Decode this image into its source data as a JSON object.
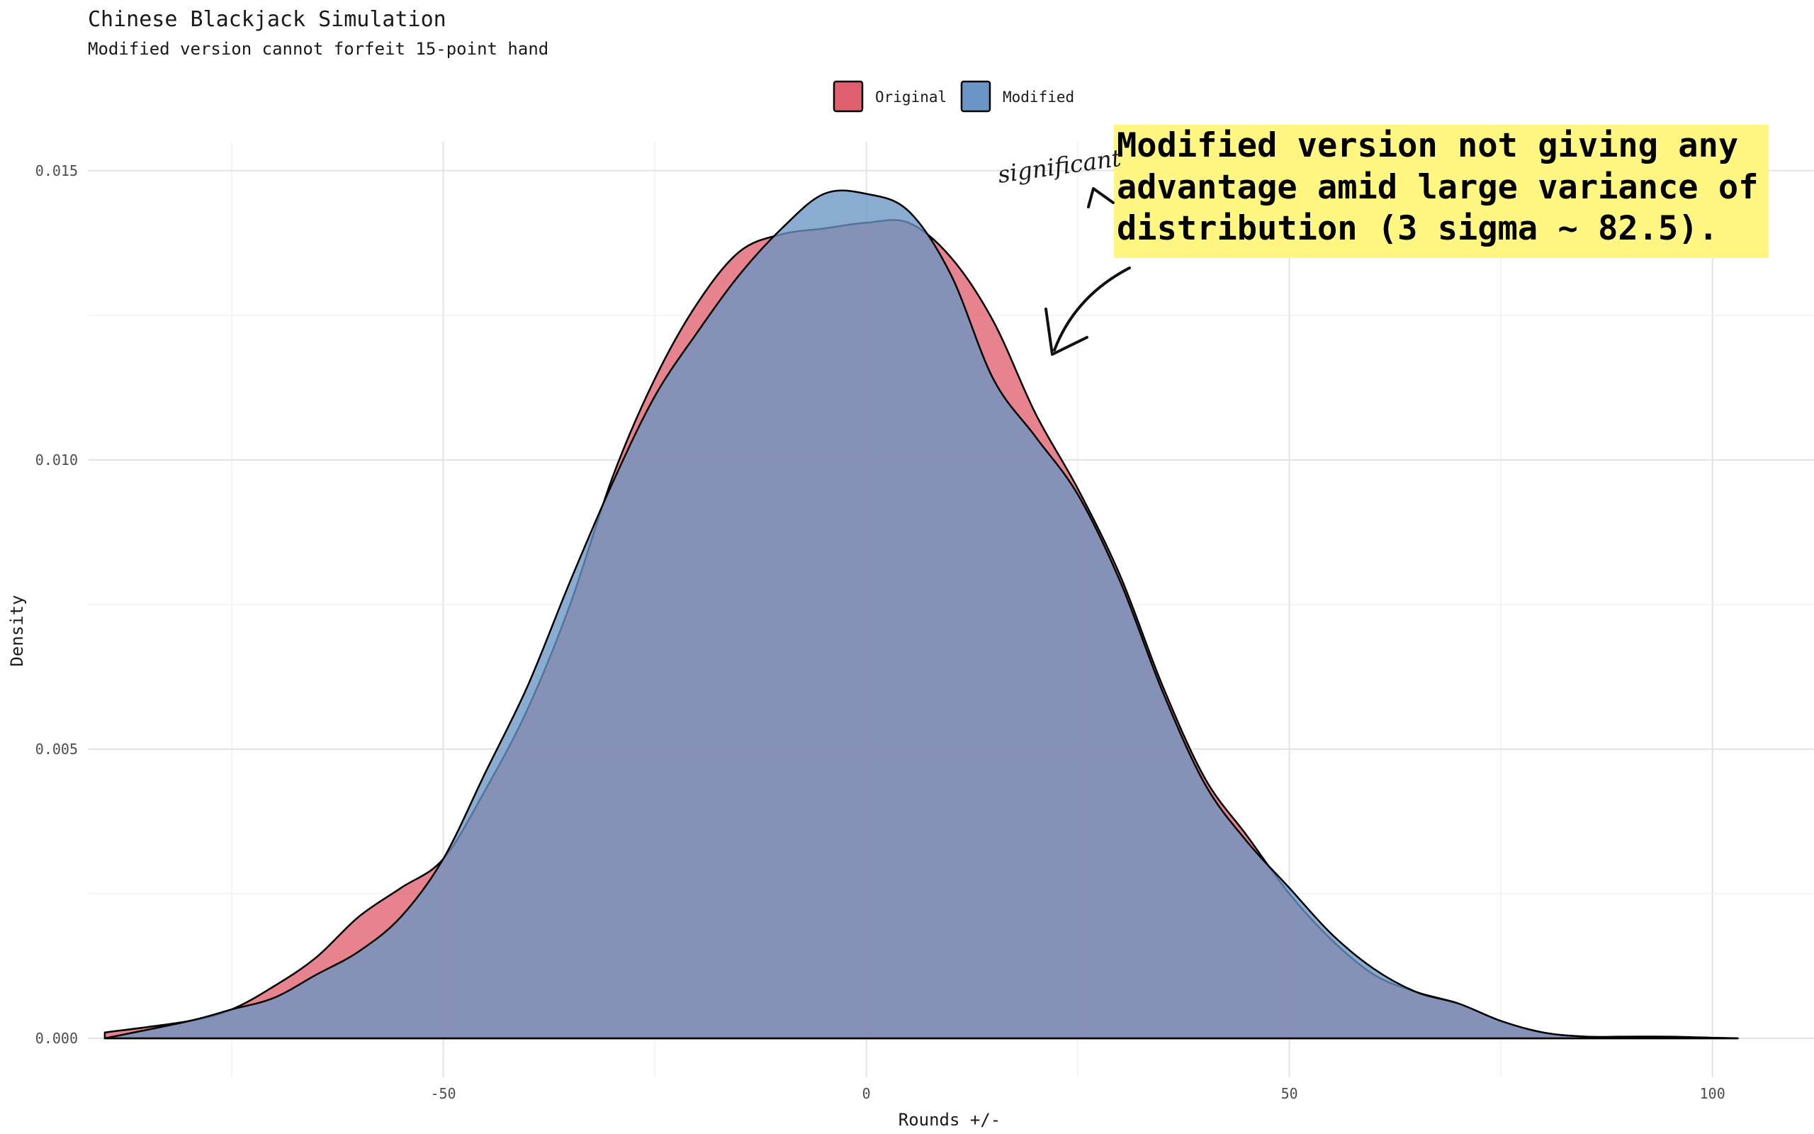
{
  "chart_data": {
    "type": "area",
    "title": "Chinese Blackjack Simulation",
    "subtitle": "Modified version cannot forfeit 15-point hand",
    "xlabel": "Rounds +/-",
    "ylabel": "Density",
    "xlim": [
      -92,
      112
    ],
    "ylim": [
      0,
      0.0155
    ],
    "x_ticks": [
      -50,
      0,
      50,
      100
    ],
    "x_tick_labels": [
      "-50",
      "0",
      "50",
      "100"
    ],
    "y_ticks": [
      0,
      0.005,
      0.01,
      0.015
    ],
    "y_tick_labels": [
      "0.000",
      "0.005",
      "0.010",
      "0.015"
    ],
    "grid": true,
    "legend_position": "top",
    "series": [
      {
        "name": "Original",
        "color": "#e06070",
        "x": [
          -90,
          -80,
          -75,
          -70,
          -65,
          -60,
          -55,
          -50,
          -45,
          -40,
          -35,
          -30,
          -25,
          -20,
          -15,
          -10,
          -5,
          0,
          5,
          10,
          15,
          20,
          25,
          30,
          35,
          40,
          45,
          50,
          55,
          60,
          65,
          70,
          75,
          80,
          85,
          90,
          95,
          100,
          103
        ],
        "values": [
          0.0001,
          0.0003,
          0.0005,
          0.0009,
          0.0014,
          0.0021,
          0.0026,
          0.0031,
          0.0043,
          0.0057,
          0.0075,
          0.0097,
          0.0114,
          0.0127,
          0.0136,
          0.0139,
          0.014,
          0.0141,
          0.0141,
          0.0135,
          0.0124,
          0.0108,
          0.0095,
          0.008,
          0.0061,
          0.0045,
          0.0035,
          0.0025,
          0.0017,
          0.0011,
          0.0008,
          0.0006,
          0.0003,
          0.0001,
          3e-05,
          3e-05,
          3e-05,
          1e-05,
          0.0
        ]
      },
      {
        "name": "Modified",
        "color": "#6a95c4",
        "x": [
          -90,
          -80,
          -75,
          -70,
          -65,
          -60,
          -55,
          -50,
          -45,
          -40,
          -35,
          -30,
          -25,
          -20,
          -15,
          -10,
          -5,
          0,
          5,
          10,
          15,
          20,
          25,
          30,
          35,
          40,
          45,
          50,
          55,
          60,
          65,
          70,
          75,
          80,
          85,
          90,
          95,
          100,
          103
        ],
        "values": [
          0.0,
          0.0003,
          0.0005,
          0.0007,
          0.0011,
          0.0015,
          0.0021,
          0.0031,
          0.0046,
          0.0061,
          0.0079,
          0.0096,
          0.0111,
          0.0122,
          0.0132,
          0.014,
          0.0146,
          0.0146,
          0.0143,
          0.0132,
          0.0114,
          0.0104,
          0.0094,
          0.0079,
          0.006,
          0.0044,
          0.0034,
          0.0026,
          0.0018,
          0.0012,
          0.0008,
          0.0006,
          0.0003,
          0.0001,
          3e-05,
          2e-05,
          1e-05,
          1e-05,
          0.0
        ]
      }
    ],
    "annotations": [
      {
        "kind": "callout-box",
        "lines": [
          "Modified version not giving any",
          "advantage amid large variance of",
          "distribution (3 sigma ~ 82.5)."
        ],
        "background": "#fff782"
      },
      {
        "kind": "handwritten-caret",
        "text": "significant"
      }
    ]
  }
}
